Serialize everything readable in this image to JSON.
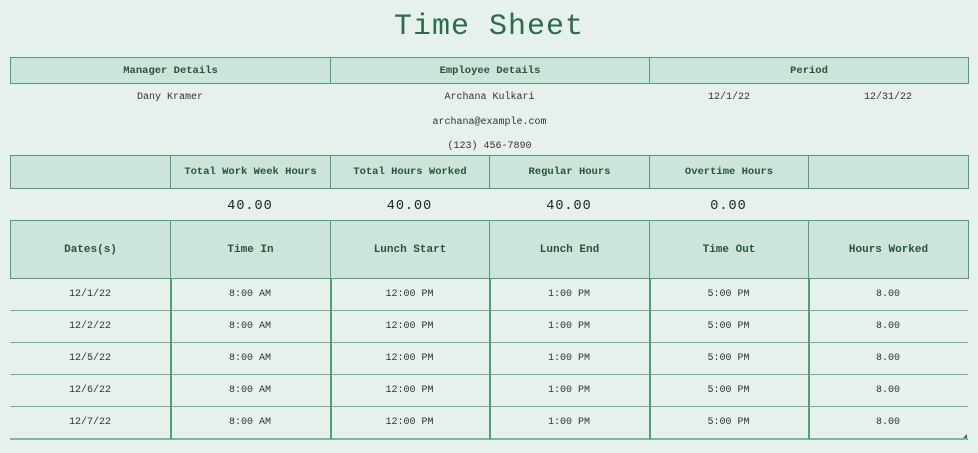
{
  "title": "Time Sheet",
  "details": {
    "headers": [
      "Manager Details",
      "Employee Details",
      "Period"
    ],
    "manager_name": "Dany Kramer",
    "employee_name": "Archana Kulkari",
    "employee_email": "archana@example.com",
    "employee_phone": "(123) 456-7890",
    "period_start": "12/1/22",
    "period_end": "12/31/22"
  },
  "totals": {
    "headers": [
      "",
      "Total Work Week Hours",
      "Total Hours Worked",
      "Regular Hours",
      "Overtime Hours",
      ""
    ],
    "values": [
      "",
      "40.00",
      "40.00",
      "40.00",
      "0.00",
      ""
    ]
  },
  "table": {
    "columns": [
      "Dates(s)",
      "Time In",
      "Lunch Start",
      "Lunch End",
      "Time Out",
      "Hours Worked"
    ],
    "rows": [
      [
        "12/1/22",
        "8:00 AM",
        "12:00 PM",
        "1:00 PM",
        "5:00 PM",
        "8.00"
      ],
      [
        "12/2/22",
        "8:00 AM",
        "12:00 PM",
        "1:00 PM",
        "5:00 PM",
        "8.00"
      ],
      [
        "12/5/22",
        "8:00 AM",
        "12:00 PM",
        "1:00 PM",
        "5:00 PM",
        "8.00"
      ],
      [
        "12/6/22",
        "8:00 AM",
        "12:00 PM",
        "1:00 PM",
        "5:00 PM",
        "8.00"
      ],
      [
        "12/7/22",
        "8:00 AM",
        "12:00 PM",
        "1:00 PM",
        "5:00 PM",
        "8.00"
      ]
    ]
  },
  "colors": {
    "background": "#e5f1ea",
    "header": "#cce4d9",
    "border": "#4e9e7b",
    "title": "#2e6a50"
  }
}
